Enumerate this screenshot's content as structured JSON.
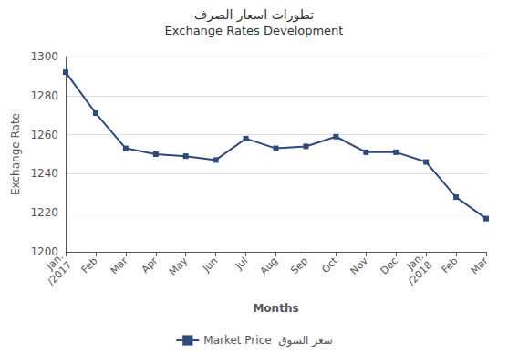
{
  "chart_data": {
    "type": "line",
    "title": "تطورات اسعار الصرف",
    "subtitle": "Exchange Rates Development",
    "x_label": "Months",
    "y_label": "Exchange Rate",
    "categories": [
      "Jan.\n/2017",
      "Feb",
      "Mar",
      "Apr",
      "May",
      "Jun",
      "Jul",
      "Aug",
      "Sep",
      "Oct",
      "Nov",
      "Dec",
      "Jan.\n/2018",
      "Feb",
      "Mar"
    ],
    "series": [
      {
        "name": "Market Price  سعر السوق",
        "color": "#2E4A7A",
        "marker": "square",
        "values": [
          1292,
          1271,
          1253,
          1250,
          1249,
          1247,
          1258,
          1253,
          1254,
          1259,
          1251,
          1251,
          1246,
          1228,
          1217
        ]
      }
    ],
    "ylim": [
      1200,
      1300
    ],
    "yticks": [
      1200,
      1220,
      1240,
      1260,
      1280,
      1300
    ],
    "grid": true,
    "legend": "bottom"
  }
}
